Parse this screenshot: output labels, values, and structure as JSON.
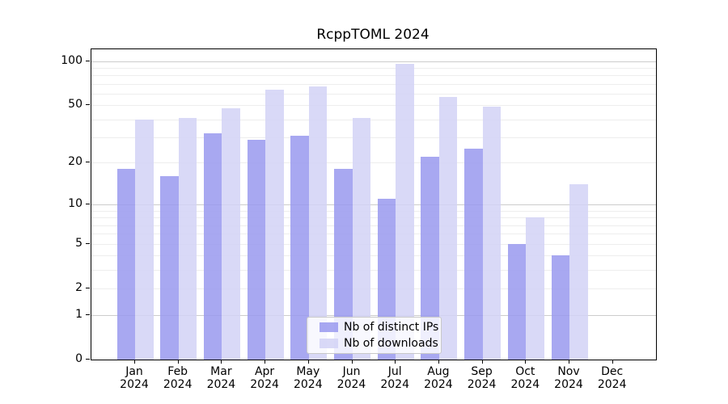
{
  "chart_data": {
    "type": "bar",
    "title": "RcppTOML 2024",
    "x_axis": {
      "categories": [
        "Jan",
        "Feb",
        "Mar",
        "Apr",
        "May",
        "Jun",
        "Jul",
        "Aug",
        "Sep",
        "Oct",
        "Nov",
        "Dec"
      ],
      "year_line": "2024"
    },
    "y_axis": {
      "scale": "log1p",
      "tick_values": [
        0,
        1,
        2,
        5,
        10,
        20,
        50,
        100
      ],
      "major_gridlines": [
        1,
        10,
        100
      ],
      "minor_gridlines": [
        2,
        3,
        4,
        5,
        6,
        7,
        8,
        9,
        20,
        30,
        40,
        50,
        60,
        70,
        80,
        90
      ],
      "ylim": [
        0,
        120
      ]
    },
    "series": [
      {
        "name": "Nb of distinct IPs",
        "color": "#9999ee",
        "values": [
          18,
          16,
          32,
          29,
          31,
          18,
          11,
          22,
          25,
          5,
          4,
          0
        ]
      },
      {
        "name": "Nb of downloads",
        "color": "#d2d2f6",
        "values": [
          40,
          41,
          48,
          64,
          67,
          41,
          96,
          57,
          49,
          8,
          14,
          0
        ]
      }
    ],
    "bar_fill_opacity": 0.85,
    "legend": {
      "position": "inside-bottom-center"
    },
    "colors": {
      "major_grid": "#cccccc",
      "minor_grid": "#ededed",
      "axis": "#000000",
      "background": "#ffffff"
    }
  }
}
